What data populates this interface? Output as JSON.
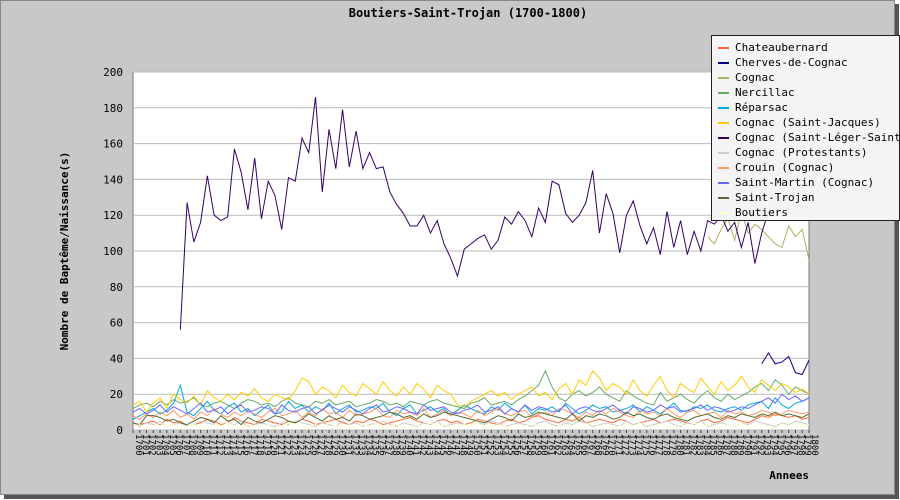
{
  "chart_data": {
    "type": "line",
    "title": "Boutiers-Saint-Trojan (1700-1800)",
    "xlabel": "Annees",
    "ylabel": "Nombre de Baptême/Naissance(s)",
    "ylim": [
      0,
      200
    ],
    "yticks": [
      0,
      20,
      40,
      60,
      80,
      100,
      120,
      140,
      160,
      180,
      200
    ],
    "xlim": [
      1700,
      1800
    ],
    "grid": true,
    "legend_position": "top-right",
    "series": [
      {
        "name": "Chateaubernard",
        "color": "#ff6633",
        "x_start": 1700,
        "values": [
          2,
          3,
          4,
          5,
          3,
          6,
          4,
          5,
          2,
          3,
          4,
          6,
          5,
          3,
          4,
          7,
          5,
          4,
          3,
          6,
          5,
          4,
          3,
          5,
          4,
          6,
          5,
          3,
          4,
          5,
          6,
          4,
          3,
          5,
          4,
          6,
          5,
          3,
          4,
          5,
          6,
          7,
          5,
          4,
          3,
          5,
          6,
          4,
          5,
          3,
          4,
          6,
          5,
          4,
          3,
          5,
          6,
          4,
          5,
          7,
          8,
          6,
          5,
          4,
          6,
          5,
          7,
          4,
          5,
          6,
          5,
          4,
          6,
          5,
          3,
          4,
          5,
          6,
          4,
          5,
          6,
          5,
          4,
          3,
          5,
          6,
          4,
          5,
          7,
          6,
          5,
          4,
          6,
          8,
          7,
          9,
          8,
          7,
          8,
          6,
          7
        ]
      },
      {
        "name": "Cherves-de-Cognac",
        "color": "#000080",
        "x_start": 1793,
        "values": [
          37,
          43,
          37,
          38,
          41,
          32,
          31,
          39
        ]
      },
      {
        "name": "Cognac",
        "color": "#b0b060",
        "x_start": 1785,
        "values": [
          108,
          104,
          112,
          118,
          106,
          122,
          110,
          115,
          112,
          108,
          104,
          102,
          114,
          108,
          112,
          95
        ]
      },
      {
        "name": "Nercillac",
        "color": "#66aa66",
        "x_start": 1700,
        "values": [
          12,
          14,
          15,
          13,
          16,
          14,
          17,
          15,
          16,
          18,
          14,
          13,
          15,
          16,
          14,
          12,
          15,
          17,
          16,
          14,
          15,
          13,
          16,
          18,
          15,
          14,
          13,
          16,
          15,
          17,
          14,
          15,
          16,
          13,
          14,
          15,
          17,
          16,
          14,
          15,
          13,
          16,
          15,
          14,
          16,
          17,
          15,
          14,
          13,
          12,
          15,
          16,
          18,
          14,
          15,
          16,
          14,
          17,
          19,
          22,
          25,
          33,
          24,
          18,
          16,
          20,
          22,
          19,
          21,
          24,
          20,
          18,
          16,
          22,
          19,
          17,
          15,
          14,
          21,
          16,
          18,
          20,
          17,
          15,
          19,
          22,
          18,
          16,
          20,
          17,
          19,
          21,
          24,
          26,
          22,
          28,
          25,
          20,
          24,
          22,
          20
        ]
      },
      {
        "name": "Réparsac",
        "color": "#00aadd",
        "x_start": 1700,
        "values": [
          6,
          8,
          10,
          12,
          9,
          11,
          15,
          25,
          10,
          8,
          12,
          16,
          11,
          9,
          13,
          15,
          10,
          12,
          8,
          11,
          14,
          9,
          10,
          16,
          12,
          14,
          10,
          13,
          11,
          15,
          9,
          12,
          14,
          10,
          11,
          13,
          12,
          15,
          10,
          8,
          12,
          14,
          9,
          11,
          13,
          10,
          12,
          8,
          11,
          14,
          12,
          10,
          9,
          13,
          11,
          15,
          12,
          10,
          14,
          9,
          12,
          11,
          13,
          10,
          15,
          12,
          9,
          11,
          14,
          12,
          13,
          10,
          11,
          12,
          14,
          10,
          13,
          11,
          9,
          12,
          15,
          11,
          10,
          13,
          12,
          14,
          11,
          10,
          12,
          13,
          11,
          14,
          15,
          16,
          12,
          18,
          14,
          12,
          15,
          16,
          18
        ]
      },
      {
        "name": "Cognac (Saint-Jacques)",
        "color": "#ffcc00",
        "x_start": 1700,
        "values": [
          14,
          16,
          10,
          15,
          18,
          12,
          20,
          17,
          15,
          19,
          14,
          22,
          18,
          16,
          20,
          17,
          21,
          19,
          23,
          18,
          16,
          20,
          18,
          17,
          22,
          29,
          27,
          20,
          24,
          22,
          18,
          25,
          21,
          19,
          26,
          23,
          20,
          27,
          22,
          19,
          24,
          20,
          26,
          23,
          18,
          25,
          22,
          20,
          14,
          13,
          16,
          18,
          20,
          22,
          19,
          21,
          17,
          20,
          22,
          24,
          19,
          21,
          17,
          23,
          26,
          20,
          28,
          25,
          33,
          29,
          22,
          26,
          24,
          20,
          28,
          22,
          19,
          25,
          30,
          22,
          18,
          26,
          23,
          21,
          29,
          24,
          20,
          27,
          22,
          25,
          30,
          24,
          21,
          28,
          25,
          22,
          26,
          24,
          21,
          23,
          20
        ]
      },
      {
        "name": "Cognac (Saint-Léger-Saint-Cap",
        "color": "#330066",
        "x_start": 1707,
        "values": [
          56,
          127,
          105,
          116,
          142,
          120,
          117,
          119,
          157,
          144,
          123,
          152,
          118,
          139,
          131,
          112,
          141,
          139,
          163,
          155,
          186,
          133,
          168,
          146,
          179,
          147,
          167,
          146,
          155,
          146,
          147,
          133,
          126,
          121,
          114,
          114,
          120,
          110,
          117,
          104,
          96,
          86,
          101,
          104,
          107,
          109,
          101,
          106,
          119,
          115,
          122,
          117,
          108,
          124,
          116,
          139,
          137,
          121,
          116,
          120,
          127,
          145,
          110,
          132,
          121,
          99,
          120,
          128,
          114,
          104,
          113,
          98,
          122,
          102,
          117,
          98,
          111,
          100,
          117,
          115,
          120,
          111,
          116,
          102,
          116,
          93,
          110,
          122
        ]
      },
      {
        "name": "Cognac (Protestants)",
        "color": "#cccccc",
        "x_start": 1700,
        "values": [
          3,
          2,
          4,
          3,
          5,
          2,
          3,
          4,
          2,
          3,
          5,
          4,
          3,
          2,
          4,
          3,
          5,
          2,
          3,
          4,
          3,
          2,
          4,
          3,
          5,
          4,
          3,
          2,
          4,
          3,
          2,
          5,
          3,
          4,
          2,
          3,
          4,
          5,
          3,
          2,
          4,
          3,
          2,
          4,
          3,
          5,
          2,
          3,
          4,
          3,
          2,
          4,
          3,
          5,
          4,
          2,
          3,
          4,
          3,
          2,
          4,
          5,
          3,
          2,
          4,
          3,
          5,
          4,
          2,
          3,
          4,
          3,
          2,
          5,
          3,
          4,
          2,
          3,
          4,
          5,
          3,
          2,
          4,
          3,
          5,
          2,
          3,
          4,
          3,
          2,
          4,
          3,
          5,
          4,
          3,
          2,
          4,
          3,
          5,
          4,
          3
        ]
      },
      {
        "name": "Crouin (Cognac)",
        "color": "#ff9966",
        "x_start": 1700,
        "values": [
          8,
          6,
          9,
          7,
          10,
          8,
          11,
          7,
          9,
          6,
          10,
          8,
          12,
          9,
          7,
          10,
          8,
          11,
          9,
          7,
          10,
          12,
          8,
          9,
          11,
          7,
          10,
          8,
          12,
          9,
          10,
          7,
          11,
          8,
          9,
          10,
          12,
          8,
          7,
          11,
          9,
          10,
          8,
          12,
          7,
          9,
          11,
          8,
          10,
          9,
          7,
          11,
          8,
          10,
          12,
          9,
          8,
          10,
          11,
          7,
          9,
          10,
          8,
          12,
          11,
          9,
          7,
          10,
          8,
          11,
          9,
          12,
          10,
          8,
          7,
          11,
          9,
          10,
          8,
          12,
          9,
          7,
          10,
          11,
          8,
          9,
          10,
          7,
          11,
          9,
          10,
          8,
          9,
          11,
          10,
          8,
          9,
          11,
          10,
          9,
          10
        ]
      },
      {
        "name": "Saint-Martin (Cognac)",
        "color": "#6666ff",
        "x_start": 1700,
        "values": [
          10,
          12,
          9,
          11,
          14,
          10,
          13,
          11,
          9,
          12,
          15,
          10,
          11,
          13,
          9,
          12,
          14,
          10,
          11,
          13,
          12,
          9,
          14,
          11,
          10,
          12,
          13,
          9,
          11,
          14,
          12,
          10,
          13,
          11,
          9,
          12,
          14,
          10,
          11,
          13,
          12,
          10,
          9,
          14,
          11,
          12,
          13,
          10,
          9,
          11,
          12,
          14,
          10,
          11,
          13,
          9,
          12,
          10,
          14,
          11,
          13,
          12,
          10,
          11,
          14,
          9,
          12,
          13,
          11,
          10,
          12,
          14,
          11,
          9,
          13,
          12,
          10,
          11,
          14,
          12,
          13,
          10,
          11,
          12,
          14,
          11,
          13,
          12,
          10,
          11,
          13,
          12,
          14,
          16,
          18,
          15,
          20,
          17,
          19,
          16,
          18
        ]
      },
      {
        "name": "Saint-Trojan",
        "color": "#556b2f",
        "x_start": 1700,
        "values": [
          4,
          3,
          8,
          8,
          7,
          5,
          6,
          4,
          3,
          5,
          7,
          6,
          4,
          8,
          5,
          6,
          3,
          7,
          5,
          4,
          6,
          8,
          7,
          5,
          4,
          6,
          9,
          7,
          5,
          8,
          6,
          7,
          5,
          9,
          8,
          6,
          7,
          8,
          10,
          9,
          7,
          8,
          6,
          9,
          7,
          8,
          10,
          9,
          8,
          7,
          6,
          5,
          4,
          6,
          8,
          7,
          5,
          9,
          7,
          8,
          10,
          9,
          8,
          7,
          6,
          9,
          5,
          8,
          7,
          9,
          8,
          6,
          7,
          10,
          8,
          9,
          7,
          6,
          8,
          9,
          7,
          6,
          5,
          7,
          8,
          9,
          7,
          6,
          8,
          7,
          9,
          8,
          7,
          9,
          8,
          10,
          8,
          9,
          8,
          7,
          9
        ]
      },
      {
        "name": "Boutiers",
        "color": "#ffffcc",
        "x_start": 1700,
        "values": [
          2,
          3,
          1,
          2,
          4,
          2,
          3,
          1,
          2,
          3,
          2,
          1,
          3,
          2,
          4,
          2,
          1,
          3,
          2,
          2,
          3,
          1,
          2,
          4,
          3,
          2,
          1,
          3,
          2,
          4,
          2,
          3,
          1,
          2,
          3,
          2,
          4,
          1,
          2,
          3,
          2,
          1,
          3,
          2,
          4,
          2,
          3,
          1,
          2,
          3,
          2,
          4,
          1,
          2,
          3,
          2,
          1,
          3,
          2,
          4,
          2,
          3,
          1,
          2,
          3,
          2,
          1,
          3,
          4,
          2,
          3,
          1,
          2,
          3,
          2,
          4,
          1,
          2,
          3,
          2,
          1,
          3,
          2,
          4,
          2,
          3,
          1,
          2,
          3,
          2,
          4,
          1,
          2,
          3,
          2,
          1,
          3,
          2,
          4,
          2,
          3
        ]
      }
    ]
  }
}
